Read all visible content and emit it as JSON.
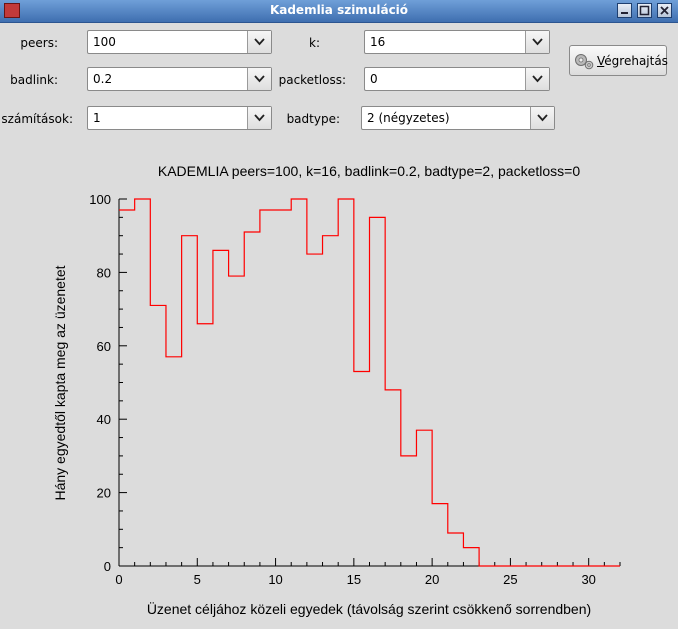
{
  "window": {
    "title": "Kademlia szimuláció",
    "controls": {
      "minimize": "minimize-icon",
      "maximize": "maximize-icon",
      "close": "close-icon"
    }
  },
  "form": {
    "peers": {
      "label": "peers:",
      "value": "100"
    },
    "k": {
      "label": "k:",
      "value": "16"
    },
    "badlink": {
      "label": "badlink:",
      "value": "0.2"
    },
    "packetloss": {
      "label": "packetloss:",
      "value": "0"
    },
    "szamitasok": {
      "label": "számítások:",
      "value": "1"
    },
    "badtype": {
      "label": "badtype:",
      "value": "2 (négyzetes)"
    },
    "execute_button": {
      "access_key": "V",
      "label_rest": "égrehajtás",
      "icon": "gears-icon"
    }
  },
  "chart_data": {
    "type": "line",
    "title": "KADEMLIA peers=100, k=16, badlink=0.2, badtype=2, packetloss=0",
    "xlabel": "Üzenet céljához közeli egyedek (távolság szerint csökkenő sorrendben)",
    "ylabel": "Hány egyedtől kapta meg az üzenetet",
    "xlim": [
      0,
      32
    ],
    "ylim": [
      0,
      100
    ],
    "xticks": [
      0,
      5,
      10,
      15,
      20,
      25,
      30
    ],
    "yticks": [
      0,
      20,
      40,
      60,
      80,
      100
    ],
    "grid": false,
    "color": "#ff0000",
    "step": true,
    "series": [
      {
        "x": [
          0,
          1,
          2,
          3,
          4,
          5,
          6,
          7,
          8,
          9,
          10,
          11,
          12,
          13,
          14,
          15,
          16,
          17,
          18,
          19,
          20,
          21,
          22,
          23,
          24,
          25,
          26,
          27,
          28,
          29,
          30,
          31
        ],
        "values": [
          97,
          100,
          71,
          57,
          90,
          66,
          86,
          79,
          91,
          97,
          97,
          100,
          85,
          90,
          100,
          53,
          95,
          48,
          30,
          37,
          17,
          9,
          5,
          0,
          0,
          0,
          0,
          0,
          0,
          0,
          0,
          0
        ]
      }
    ]
  }
}
